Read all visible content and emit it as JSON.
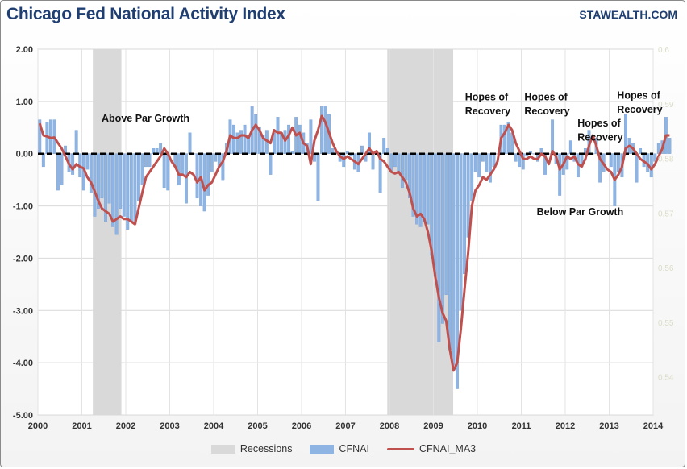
{
  "header": {
    "title": "Chicago Fed National Activity Index",
    "site": "STAWEALTH.COM"
  },
  "chart_data": {
    "type": "bar+line",
    "title": "Chicago Fed National Activity Index",
    "xlabel": "",
    "ylabel": "",
    "ylim": [
      -5.0,
      2.0
    ],
    "y_ticks": [
      "2.00",
      "1.00",
      "0.00",
      "-1.00",
      "-2.00",
      "-3.00",
      "-4.00",
      "-5.00"
    ],
    "x_ticks": [
      "2000",
      "2001",
      "2002",
      "2003",
      "2004",
      "2005",
      "2006",
      "2007",
      "2008",
      "2009",
      "2010",
      "2011",
      "2012",
      "2013",
      "2014"
    ],
    "x_range": [
      2000,
      2014
    ],
    "right_axis_ticks": [
      "0.6",
      "0.59",
      "0.58",
      "0.57",
      "0.56",
      "0.55",
      "0.54"
    ],
    "grid": true,
    "legend_position": "bottom",
    "colors": {
      "bar": "#8eb4e3",
      "bar_edge": "#6f98cc",
      "line": "#c0504d",
      "recession": "#d9d9d9",
      "zero_line": "#000000"
    },
    "recessions": [
      [
        2001.25,
        2001.9
      ],
      [
        2007.95,
        2009.45
      ]
    ],
    "legend": [
      "Recessions",
      "CFNAI",
      "CFNAI_MA3"
    ],
    "annotations": [
      {
        "text": "Above Par Growth",
        "x": 2001.45,
        "y": 0.61
      },
      {
        "text": "Below Par Growth",
        "x": 2011.35,
        "y": -1.18
      },
      {
        "text": "Hopes of",
        "x": 2009.72,
        "y": 1.02
      },
      {
        "text": "Recovery",
        "x": 2009.72,
        "y": 0.75
      },
      {
        "text": "Hopes of",
        "x": 2011.07,
        "y": 1.02
      },
      {
        "text": "Recovery",
        "x": 2011.07,
        "y": 0.75
      },
      {
        "text": "Hopes of",
        "x": 2012.28,
        "y": 0.52
      },
      {
        "text": "Recovery",
        "x": 2012.28,
        "y": 0.25
      },
      {
        "text": "Hopes of",
        "x": 2013.18,
        "y": 1.05
      },
      {
        "text": "Recovery",
        "x": 2013.18,
        "y": 0.78
      }
    ],
    "series": [
      {
        "name": "CFNAI",
        "start": 2000.0,
        "step": 0.0833333,
        "values": [
          0.65,
          -0.25,
          0.6,
          0.65,
          0.65,
          -0.7,
          -0.6,
          0.15,
          -0.35,
          -0.4,
          0.45,
          -0.45,
          -0.7,
          -0.3,
          -0.75,
          -1.2,
          -1.05,
          -0.85,
          -1.3,
          -0.95,
          -1.4,
          -1.55,
          -1.05,
          -1.2,
          -1.45,
          -1.3,
          -1.35,
          -0.9,
          -0.6,
          -0.25,
          -0.25,
          0.1,
          0.1,
          0.2,
          -0.65,
          -0.7,
          0.0,
          -0.25,
          -0.6,
          -0.4,
          -0.95,
          0.4,
          0.0,
          -0.85,
          -1.0,
          -1.1,
          -0.8,
          -0.35,
          -0.15,
          -0.25,
          -0.5,
          0.2,
          0.65,
          0.55,
          0.4,
          0.45,
          0.55,
          0.35,
          0.9,
          0.75,
          0.5,
          0.35,
          0.45,
          -0.4,
          0.4,
          0.7,
          0.4,
          0.45,
          0.55,
          0.05,
          0.7,
          0.55,
          0.4,
          0.2,
          0.65,
          -0.15,
          -0.9,
          0.9,
          0.9,
          0.75,
          0.1,
          0.0,
          -0.15,
          -0.25,
          0.05,
          -0.05,
          -0.3,
          -0.35,
          0.15,
          -0.15,
          0.4,
          -0.3,
          0.0,
          -0.75,
          0.3,
          0.1,
          -0.35,
          -0.25,
          -0.35,
          -0.65,
          -0.5,
          -0.85,
          -1.2,
          -1.35,
          -1.4,
          -1.3,
          -1.35,
          -1.95,
          -2.35,
          -3.6,
          -3.25,
          -2.7,
          -3.75,
          -4.05,
          -4.5,
          -3.0,
          -2.3,
          -1.6,
          -0.9,
          -0.35,
          -0.45,
          -0.15,
          -0.35,
          -0.55,
          -0.25,
          0.0,
          0.55,
          0.55,
          0.6,
          0.4,
          -0.15,
          -0.25,
          -0.3,
          -0.05,
          0.05,
          0.0,
          -0.15,
          0.1,
          -0.4,
          0.0,
          0.65,
          -0.2,
          -0.8,
          -0.4,
          -0.3,
          0.25,
          -0.15,
          -0.45,
          -0.25,
          0.1,
          0.45,
          0.0,
          0.3,
          -0.55,
          -0.35,
          0.0,
          -0.25,
          -1.0,
          -0.35,
          -0.45,
          0.75,
          0.3,
          0.2,
          -0.55,
          0.1,
          -0.25,
          -0.35,
          -0.45,
          -0.15,
          0.2,
          0.25,
          0.7,
          0.3
        ]
      },
      {
        "name": "CFNAI_MA3",
        "start": 2000.0,
        "step": 0.0833333,
        "values": [
          0.58,
          0.35,
          0.33,
          0.3,
          0.31,
          0.2,
          0.1,
          -0.05,
          -0.2,
          -0.3,
          -0.2,
          -0.25,
          -0.28,
          -0.45,
          -0.55,
          -0.72,
          -0.9,
          -1.05,
          -1.1,
          -1.15,
          -1.3,
          -1.25,
          -1.2,
          -1.25,
          -1.25,
          -1.3,
          -1.35,
          -1.05,
          -0.75,
          -0.45,
          -0.35,
          -0.25,
          -0.15,
          -0.05,
          0.1,
          0.0,
          -0.15,
          -0.25,
          -0.4,
          -0.4,
          -0.45,
          -0.35,
          -0.4,
          -0.55,
          -0.45,
          -0.7,
          -0.6,
          -0.55,
          -0.4,
          -0.25,
          -0.15,
          0.05,
          0.35,
          0.3,
          0.3,
          0.35,
          0.35,
          0.3,
          0.45,
          0.55,
          0.45,
          0.3,
          0.25,
          0.2,
          0.45,
          0.4,
          0.4,
          0.25,
          0.35,
          0.5,
          0.35,
          0.4,
          0.2,
          0.15,
          -0.2,
          0.25,
          0.45,
          0.72,
          0.6,
          0.4,
          0.2,
          0.05,
          -0.05,
          -0.1,
          -0.05,
          -0.1,
          -0.15,
          -0.2,
          -0.1,
          0.0,
          0.1,
          0.0,
          0.05,
          -0.1,
          -0.15,
          -0.25,
          -0.35,
          -0.38,
          -0.35,
          -0.45,
          -0.55,
          -0.75,
          -1.05,
          -1.2,
          -1.15,
          -1.25,
          -1.5,
          -1.85,
          -2.35,
          -2.75,
          -3.05,
          -3.2,
          -3.75,
          -4.15,
          -4.0,
          -3.35,
          -2.6,
          -1.9,
          -1.0,
          -0.7,
          -0.6,
          -0.45,
          -0.5,
          -0.4,
          -0.3,
          -0.15,
          0.3,
          0.4,
          0.55,
          0.45,
          0.2,
          0.05,
          -0.1,
          -0.1,
          -0.05,
          -0.1,
          -0.1,
          0.0,
          -0.05,
          -0.2,
          0.05,
          -0.05,
          -0.3,
          -0.2,
          -0.05,
          -0.1,
          -0.05,
          -0.2,
          -0.25,
          -0.1,
          0.15,
          0.35,
          0.15,
          -0.1,
          -0.2,
          -0.3,
          -0.35,
          -0.5,
          -0.4,
          -0.25,
          0.1,
          0.15,
          0.1,
          0.0,
          -0.1,
          -0.15,
          -0.2,
          -0.3,
          -0.2,
          -0.05,
          0.1,
          0.35,
          0.35
        ]
      }
    ]
  }
}
